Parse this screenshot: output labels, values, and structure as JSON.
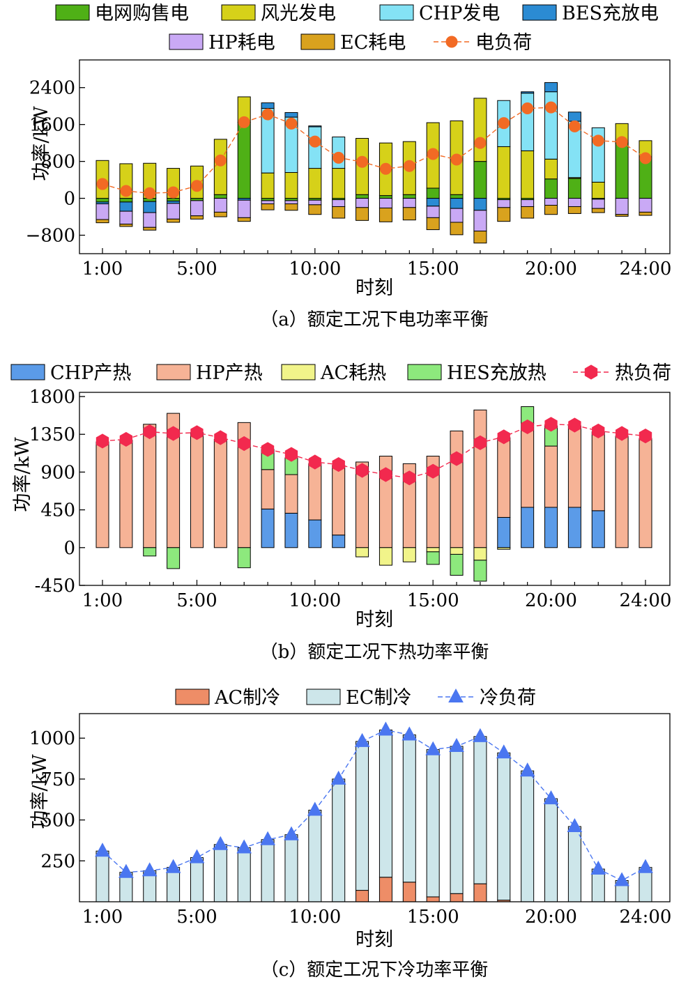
{
  "chart_data": [
    {
      "type": "bar",
      "stacked": true,
      "caption": "（a）额定工况下电功率平衡",
      "xlabel": "时刻",
      "ylabel": "功率/kW",
      "x_tick_labels": [
        "1:00",
        "5:00",
        "10:00",
        "15:00",
        "20:00",
        "24:00"
      ],
      "y_ticks": [
        -800,
        0,
        800,
        1600,
        2400
      ],
      "ylim": [
        -1200,
        3000
      ],
      "grid": false,
      "legend_position": "top",
      "categories": [
        1,
        2,
        3,
        4,
        5,
        6,
        7,
        8,
        9,
        10,
        11,
        12,
        13,
        14,
        15,
        16,
        17,
        18,
        19,
        20,
        21,
        22,
        23,
        24
      ],
      "series": [
        {
          "name": "电网购售电",
          "color": "#4fb016",
          "values": [
            -80,
            -80,
            -70,
            -60,
            -50,
            80,
            1650,
            -50,
            -50,
            -40,
            -30,
            80,
            60,
            80,
            220,
            80,
            800,
            -30,
            -30,
            420,
            430,
            -20,
            1200,
            900
          ]
        },
        {
          "name": "风光发电",
          "color": "#d6d119",
          "values": [
            820,
            750,
            760,
            650,
            700,
            1200,
            550,
            550,
            560,
            650,
            650,
            1220,
            1140,
            1150,
            1420,
            1600,
            1370,
            1120,
            1030,
            430,
            20,
            350,
            420,
            350
          ]
        },
        {
          "name": "CHP发电",
          "color": "#84e2f5",
          "values": [
            0,
            0,
            0,
            0,
            0,
            0,
            0,
            1400,
            1200,
            900,
            680,
            0,
            0,
            0,
            0,
            0,
            0,
            1000,
            1250,
            1460,
            1220,
            1180,
            0,
            0
          ]
        },
        {
          "name": "BES充放电",
          "color": "#2b8bd3",
          "values": [
            -40,
            -200,
            -240,
            -50,
            0,
            0,
            -40,
            120,
            100,
            20,
            0,
            0,
            0,
            0,
            -170,
            -220,
            -260,
            0,
            30,
            200,
            200,
            0,
            0,
            0
          ]
        },
        {
          "name": "HP耗电",
          "color": "#c9a9f5",
          "values": [
            -340,
            -280,
            -320,
            -340,
            -330,
            -300,
            -380,
            -70,
            -70,
            -100,
            -150,
            -200,
            -210,
            -200,
            -250,
            -300,
            -450,
            -170,
            -150,
            -150,
            -180,
            -200,
            -350,
            -300
          ]
        },
        {
          "name": "EC耗电",
          "color": "#d9a21e",
          "values": [
            -70,
            -50,
            -60,
            -70,
            -70,
            -100,
            -80,
            -130,
            -140,
            -210,
            -250,
            -280,
            -300,
            -270,
            -260,
            -270,
            -260,
            -300,
            -250,
            -200,
            -150,
            -90,
            -40,
            -70
          ]
        }
      ],
      "line": {
        "name": "电负荷",
        "color": "#f26a24",
        "marker": "circle",
        "values": [
          310,
          160,
          110,
          130,
          270,
          820,
          1650,
          1820,
          1620,
          1230,
          880,
          790,
          640,
          700,
          960,
          840,
          1200,
          1630,
          1950,
          1970,
          1560,
          1250,
          1220,
          870
        ]
      }
    },
    {
      "type": "bar",
      "stacked": true,
      "caption": "（b）额定工况下热功率平衡",
      "xlabel": "时刻",
      "ylabel": "功率/kW",
      "x_tick_labels": [
        "1:00",
        "5:00",
        "10:00",
        "15:00",
        "20:00",
        "24:00"
      ],
      "y_ticks": [
        -450,
        0,
        450,
        900,
        1350,
        1800
      ],
      "ylim": [
        -450,
        1850
      ],
      "grid": false,
      "legend_position": "top",
      "categories": [
        1,
        2,
        3,
        4,
        5,
        6,
        7,
        8,
        9,
        10,
        11,
        12,
        13,
        14,
        15,
        16,
        17,
        18,
        19,
        20,
        21,
        22,
        23,
        24
      ],
      "series": [
        {
          "name": "CHP产热",
          "color": "#5b9be8",
          "values": [
            0,
            0,
            0,
            0,
            0,
            0,
            0,
            460,
            410,
            330,
            150,
            0,
            0,
            0,
            0,
            0,
            0,
            360,
            480,
            480,
            480,
            440,
            0,
            0
          ]
        },
        {
          "name": "HP产热",
          "color": "#f6b396",
          "values": [
            1260,
            1280,
            1470,
            1600,
            1370,
            1290,
            1490,
            470,
            460,
            670,
            830,
            1020,
            1090,
            1000,
            1090,
            1390,
            1640,
            950,
            1000,
            730,
            970,
            940,
            1330,
            1300
          ]
        },
        {
          "name": "AC耗热",
          "color": "#f1f48a",
          "values": [
            0,
            0,
            0,
            0,
            0,
            0,
            0,
            0,
            0,
            0,
            0,
            -110,
            -210,
            -170,
            -50,
            -80,
            -150,
            -20,
            0,
            0,
            0,
            0,
            0,
            0
          ]
        },
        {
          "name": "HES充放热",
          "color": "#8de97d",
          "values": [
            0,
            0,
            -100,
            -250,
            0,
            0,
            -240,
            240,
            200,
            0,
            0,
            0,
            0,
            0,
            -150,
            -250,
            -250,
            0,
            200,
            240,
            0,
            0,
            0,
            0
          ]
        }
      ],
      "line": {
        "name": "热负荷",
        "color": "#f2294e",
        "marker": "hexagon",
        "values": [
          1270,
          1290,
          1380,
          1360,
          1370,
          1310,
          1240,
          1170,
          1110,
          1020,
          990,
          920,
          870,
          830,
          910,
          1060,
          1250,
          1320,
          1440,
          1470,
          1460,
          1390,
          1360,
          1330
        ]
      }
    },
    {
      "type": "bar",
      "stacked": true,
      "caption": "（c）额定工况下冷功率平衡",
      "xlabel": "时刻",
      "ylabel": "功率/kW",
      "x_tick_labels": [
        "1:00",
        "5:00",
        "10:00",
        "15:00",
        "20:00",
        "24:00"
      ],
      "y_ticks": [
        250,
        500,
        750,
        1000
      ],
      "ylim": [
        0,
        1150
      ],
      "grid": false,
      "legend_position": "top",
      "categories": [
        1,
        2,
        3,
        4,
        5,
        6,
        7,
        8,
        9,
        10,
        11,
        12,
        13,
        14,
        15,
        16,
        17,
        18,
        19,
        20,
        21,
        22,
        23,
        24
      ],
      "series": [
        {
          "name": "AC制冷",
          "color": "#ee8d67",
          "values": [
            0,
            0,
            0,
            0,
            0,
            0,
            0,
            0,
            0,
            0,
            0,
            70,
            150,
            120,
            30,
            50,
            110,
            10,
            0,
            0,
            0,
            0,
            0,
            0
          ]
        },
        {
          "name": "EC制冷",
          "color": "#cde6ea",
          "values": [
            310,
            180,
            190,
            210,
            270,
            350,
            330,
            380,
            410,
            560,
            750,
            910,
            900,
            900,
            900,
            900,
            900,
            900,
            800,
            630,
            460,
            200,
            130,
            210
          ]
        }
      ],
      "line": {
        "name": "冷负荷",
        "color": "#4a76f0",
        "marker": "triangle",
        "values": [
          310,
          180,
          190,
          210,
          270,
          350,
          330,
          380,
          410,
          560,
          750,
          980,
          1050,
          1020,
          930,
          950,
          1010,
          910,
          800,
          630,
          460,
          200,
          130,
          210
        ]
      }
    }
  ]
}
